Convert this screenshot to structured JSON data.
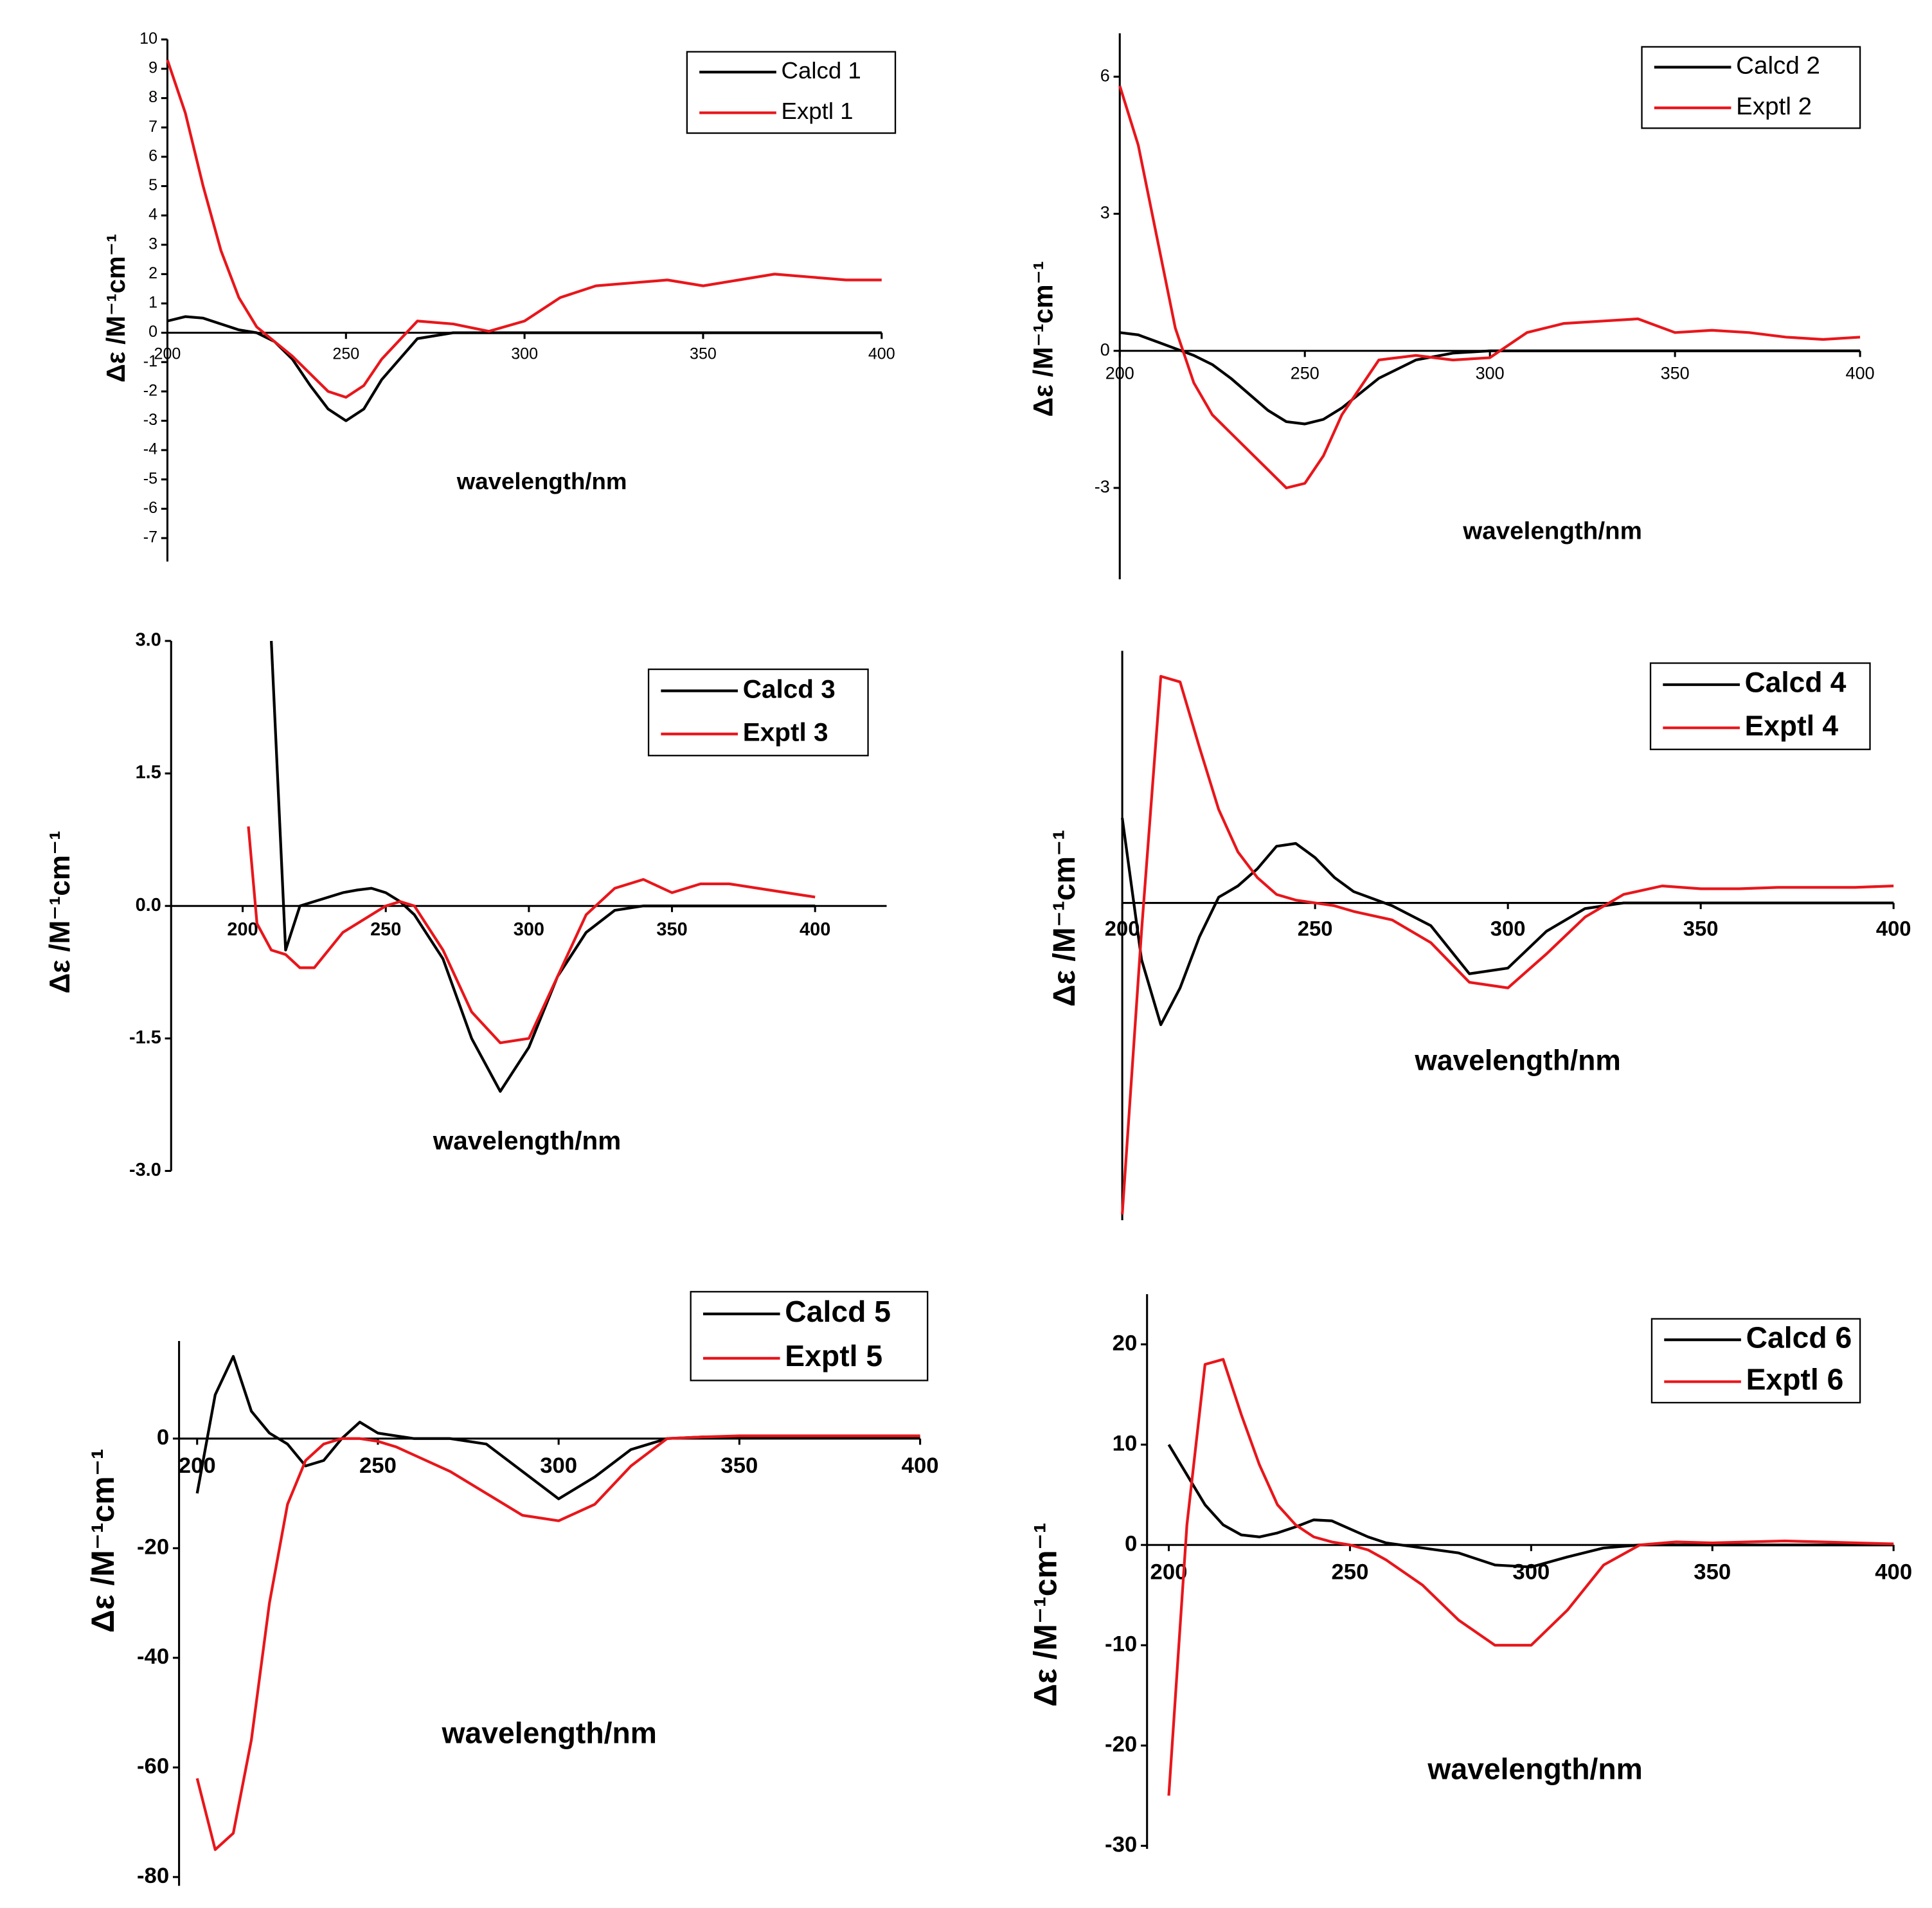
{
  "chart_data": [
    {
      "type": "line",
      "xlabel": "wavelength/nm",
      "ylabel": "Δε /M⁻¹cm⁻¹",
      "legend": "upper right",
      "x": [
        200,
        205,
        210,
        215,
        220,
        225,
        230,
        235,
        240,
        245,
        250,
        255,
        260,
        270,
        280,
        290,
        300,
        310,
        320,
        330,
        340,
        350,
        360,
        370,
        380,
        390,
        400
      ],
      "xlim": [
        200,
        400
      ],
      "xticks": [
        200,
        250,
        300,
        350,
        400
      ],
      "ylim": [
        -7.8,
        10
      ],
      "yticks": [
        -7,
        -6,
        -5,
        -4,
        -3,
        -2,
        -1,
        0,
        1,
        2,
        3,
        4,
        5,
        6,
        7,
        8,
        9,
        10
      ],
      "series": [
        {
          "name": "Calcd 1",
          "color": "#000000",
          "values": [
            0.4,
            0.55,
            0.5,
            0.3,
            0.1,
            0,
            -0.3,
            -0.9,
            -1.8,
            -2.6,
            -3.0,
            -2.6,
            -1.6,
            -0.2,
            0,
            0,
            0,
            0,
            0,
            0,
            0,
            0,
            0,
            0,
            0,
            0,
            0
          ]
        },
        {
          "name": "Exptl 1",
          "color": "#e8161b",
          "values": [
            9.3,
            7.5,
            5,
            2.8,
            1.2,
            0.2,
            -0.3,
            -0.8,
            -1.4,
            -2.0,
            -2.2,
            -1.8,
            -0.9,
            0.4,
            0.3,
            0.05,
            0.4,
            1.2,
            1.6,
            1.7,
            1.8,
            1.6,
            1.8,
            2.0,
            1.9,
            1.8,
            1.8
          ]
        }
      ]
    },
    {
      "type": "line",
      "xlabel": "wavelength/nm",
      "ylabel": "Δε /M⁻¹cm⁻¹",
      "legend": "upper right",
      "x": [
        200,
        205,
        210,
        215,
        220,
        225,
        230,
        235,
        240,
        245,
        250,
        255,
        260,
        270,
        280,
        290,
        300,
        310,
        320,
        330,
        340,
        350,
        360,
        370,
        380,
        390,
        400
      ],
      "xlim": [
        200,
        400
      ],
      "xticks": [
        200,
        250,
        300,
        350,
        400
      ],
      "ylim": [
        -5,
        6.95
      ],
      "yticks": [
        -3,
        0,
        3,
        6
      ],
      "series": [
        {
          "name": "Calcd 2",
          "color": "#000000",
          "values": [
            0.4,
            0.35,
            0.2,
            0.05,
            -0.1,
            -0.3,
            -0.6,
            -0.95,
            -1.3,
            -1.55,
            -1.6,
            -1.5,
            -1.25,
            -0.6,
            -0.2,
            -0.05,
            0,
            0,
            0,
            0,
            0,
            0,
            0,
            0,
            0,
            0,
            0
          ]
        },
        {
          "name": "Exptl 2",
          "color": "#e8161b",
          "values": [
            5.8,
            4.5,
            2.5,
            0.5,
            -0.7,
            -1.4,
            -1.8,
            -2.2,
            -2.6,
            -3.0,
            -2.9,
            -2.3,
            -1.4,
            -0.2,
            -0.1,
            -0.2,
            -0.15,
            0.4,
            0.6,
            0.65,
            0.7,
            0.4,
            0.45,
            0.4,
            0.3,
            0.25,
            0.3
          ]
        }
      ]
    },
    {
      "type": "line",
      "xlabel": "wavelength/nm",
      "ylabel": "Δε /M⁻¹cm⁻¹",
      "legend": "upper right",
      "x": [
        202,
        205,
        210,
        215,
        220,
        225,
        230,
        235,
        240,
        245,
        250,
        255,
        260,
        270,
        280,
        290,
        300,
        310,
        320,
        330,
        340,
        350,
        360,
        370,
        380,
        390,
        400
      ],
      "xlim": [
        175,
        425
      ],
      "xticks": [
        200,
        250,
        300,
        350,
        400
      ],
      "ylim": [
        -3,
        3
      ],
      "yticks": [
        {
          "value": -3,
          "label": "-3.0"
        },
        -1.5,
        {
          "value": 0,
          "label": "0.0"
        },
        1.5,
        {
          "value": 3,
          "label": "3.0"
        }
      ],
      "series": [
        {
          "name": "Calcd 3",
          "color": "#000000",
          "values": [
            null,
            null,
            3.0,
            -0.5,
            0,
            0.05,
            0.1,
            0.15,
            0.18,
            0.2,
            0.15,
            0.05,
            -0.1,
            -0.6,
            -1.5,
            -2.1,
            -1.6,
            -0.8,
            -0.3,
            -0.05,
            0,
            0,
            0,
            0,
            0,
            0,
            0
          ]
        },
        {
          "name": "Exptl 3",
          "color": "#e8161b",
          "values": [
            0.9,
            -0.2,
            -0.5,
            -0.55,
            -0.7,
            -0.7,
            -0.5,
            -0.3,
            -0.2,
            -0.1,
            0,
            0.05,
            0,
            -0.5,
            -1.2,
            -1.55,
            -1.5,
            -0.8,
            -0.1,
            0.2,
            0.3,
            0.15,
            0.25,
            0.25,
            0.2,
            0.15,
            0.1
          ]
        }
      ]
    },
    {
      "type": "line",
      "xlabel": "wavelength/nm",
      "ylabel": "Δε /M⁻¹cm⁻¹",
      "legend": "upper right",
      "x": [
        200,
        205,
        210,
        215,
        220,
        225,
        230,
        235,
        240,
        245,
        250,
        255,
        260,
        270,
        280,
        290,
        300,
        310,
        320,
        330,
        340,
        350,
        360,
        370,
        380,
        390,
        400
      ],
      "xlim": [
        200,
        400
      ],
      "xticks": [
        200,
        250,
        300,
        350,
        400
      ],
      "ylim": [
        -11.2,
        8.9
      ],
      "series": [
        {
          "name": "Calcd 4",
          "color": "#000000",
          "values": [
            3,
            -2,
            -4.3,
            -3,
            -1.2,
            0.2,
            0.6,
            1.2,
            2.0,
            2.1,
            1.6,
            0.9,
            0.4,
            -0.1,
            -0.8,
            -2.5,
            -2.3,
            -1.0,
            -0.2,
            0,
            0,
            0,
            0,
            0,
            0,
            0,
            0
          ]
        },
        {
          "name": "Exptl 4",
          "color": "#e8161b",
          "values": [
            -11,
            -1,
            8,
            7.8,
            5.5,
            3.3,
            1.8,
            0.9,
            0.3,
            0.1,
            0,
            -0.1,
            -0.3,
            -0.6,
            -1.4,
            -2.8,
            -3.0,
            -1.8,
            -0.5,
            0.3,
            0.6,
            0.5,
            0.5,
            0.55,
            0.55,
            0.55,
            0.6
          ]
        }
      ]
    },
    {
      "type": "line",
      "xlabel": "wavelength/nm",
      "ylabel": "Δε /M⁻¹cm⁻¹",
      "legend": "upper right",
      "x": [
        200,
        205,
        210,
        215,
        220,
        225,
        230,
        235,
        240,
        245,
        250,
        255,
        260,
        270,
        280,
        290,
        300,
        310,
        320,
        330,
        340,
        350,
        360,
        370,
        380,
        390,
        400
      ],
      "xlim": [
        195,
        400
      ],
      "xticks": [
        200,
        250,
        300,
        350,
        400
      ],
      "ylim": [
        -81.6,
        17.8
      ],
      "yticks": [
        -80,
        -60,
        -40,
        -20,
        0
      ],
      "series": [
        {
          "name": "Calcd 5",
          "color": "#000000",
          "values": [
            -10,
            8,
            15,
            5,
            1,
            -1,
            -5,
            -4,
            0,
            3,
            1,
            0.5,
            0,
            0,
            -1,
            -6,
            -11,
            -7,
            -2,
            0,
            0.3,
            0.3,
            0.3,
            0.3,
            0.3,
            0.3,
            0.3
          ]
        },
        {
          "name": "Exptl 5",
          "color": "#e8161b",
          "values": [
            -62,
            -75,
            -72,
            -55,
            -30,
            -12,
            -4,
            -1,
            0,
            0,
            -0.5,
            -1.5,
            -3,
            -6,
            -10,
            -14,
            -15,
            -12,
            -5,
            0,
            0.3,
            0.5,
            0.5,
            0.5,
            0.5,
            0.5,
            0.5
          ]
        }
      ]
    },
    {
      "type": "line",
      "xlabel": "wavelength/nm",
      "ylabel": "Δε /M⁻¹cm⁻¹",
      "legend": "upper right",
      "x": [
        200,
        205,
        210,
        215,
        220,
        225,
        230,
        235,
        240,
        245,
        250,
        255,
        260,
        270,
        280,
        290,
        300,
        310,
        320,
        330,
        340,
        350,
        360,
        370,
        380,
        390,
        400
      ],
      "xlim": [
        194,
        400
      ],
      "xticks": [
        200,
        250,
        300,
        350,
        400
      ],
      "ylim": [
        -30.3,
        25
      ],
      "yticks": [
        -30,
        -20,
        -10,
        0,
        10,
        20
      ],
      "series": [
        {
          "name": "Calcd 6",
          "color": "#000000",
          "values": [
            10,
            7,
            4,
            2,
            1,
            0.8,
            1.2,
            1.8,
            2.5,
            2.4,
            1.6,
            0.8,
            0.2,
            -0.3,
            -0.8,
            -2.0,
            -2.2,
            -1.2,
            -0.3,
            0,
            0,
            0,
            0,
            0,
            0,
            0,
            0
          ]
        },
        {
          "name": "Exptl 6",
          "color": "#e8161b",
          "values": [
            -25,
            2,
            18,
            18.5,
            13,
            8,
            4,
            2,
            0.8,
            0.3,
            0,
            -0.5,
            -1.5,
            -4,
            -7.5,
            -10,
            -10,
            -6.5,
            -2,
            0,
            0.3,
            0.2,
            0.3,
            0.4,
            0.3,
            0.2,
            0.1
          ]
        }
      ]
    }
  ]
}
